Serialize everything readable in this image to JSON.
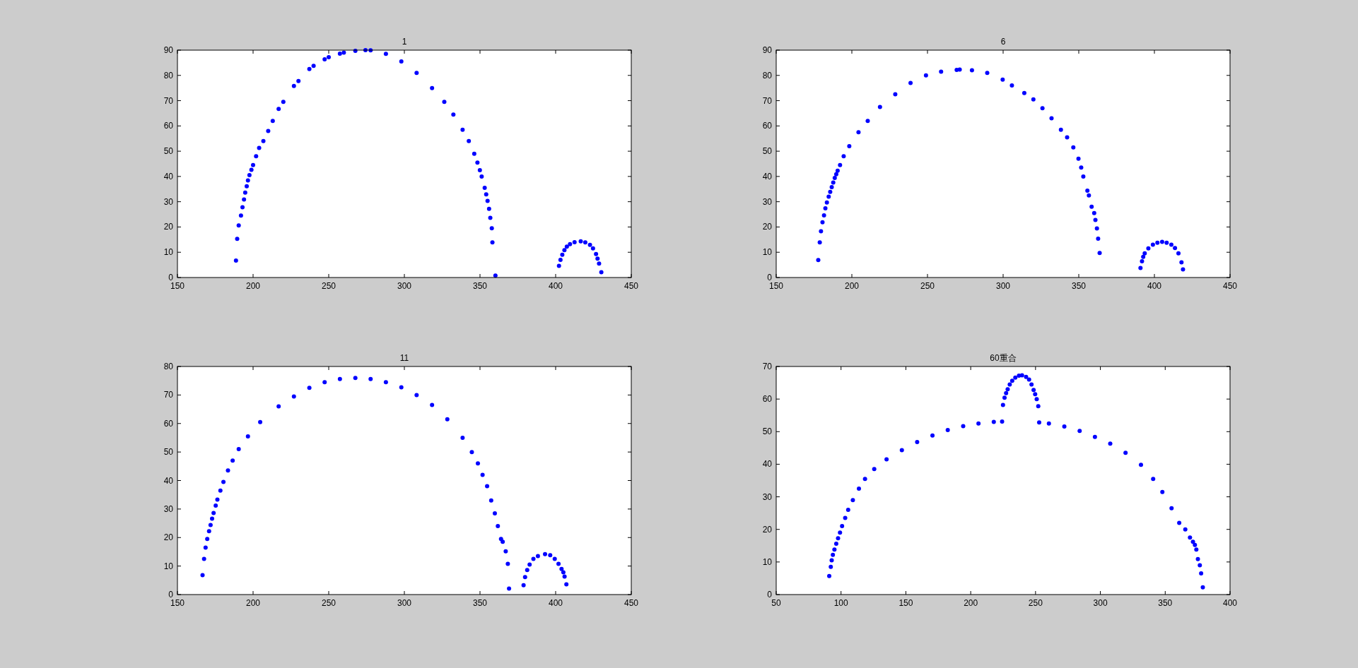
{
  "chart_data": [
    {
      "type": "scatter",
      "title": "1",
      "marker": "circle",
      "grid": false,
      "xlim": [
        150,
        450
      ],
      "xticks": [
        150,
        200,
        250,
        300,
        350,
        400,
        450
      ],
      "ylim": [
        0,
        90
      ],
      "yticks": [
        0,
        10,
        20,
        30,
        40,
        50,
        60,
        70,
        80,
        90
      ],
      "series": [
        {
          "color": "#0000ff",
          "x": [
            188.7,
            189.5,
            190.5,
            192,
            193,
            194,
            194.8,
            195.8,
            196.6,
            197.6,
            198.9,
            200,
            202,
            204,
            206.8,
            210,
            213,
            216.9,
            220,
            227,
            230,
            237.2,
            240,
            247.3,
            250,
            257.4,
            260,
            267.6,
            274.3,
            277.7,
            287.8,
            298,
            308.1,
            318.3,
            326.4,
            332.4,
            338.5,
            342.6,
            346.2,
            348.3,
            349.9,
            351.1,
            353.1,
            354.1,
            355,
            356,
            356.8,
            357.8,
            358.2,
            360.2,
            402.2,
            403.2,
            404.4,
            405.8,
            407.4,
            409.5,
            412.5,
            416.6,
            419.6,
            422.7,
            424.7,
            426.7,
            427.7,
            428.7,
            430.2
          ],
          "values": [
            6.7,
            15.3,
            20.6,
            24.5,
            27.8,
            30.9,
            33.6,
            36.1,
            38.4,
            40.5,
            42.6,
            44.5,
            48,
            51.3,
            54,
            58,
            62,
            66.7,
            69.5,
            75.8,
            77.8,
            82.5,
            83.8,
            86.4,
            87.2,
            88.6,
            89,
            89.7,
            90,
            89.9,
            88.5,
            85.5,
            81,
            75,
            69.5,
            64.5,
            58.5,
            54,
            49,
            45.5,
            42.5,
            40,
            35.5,
            32.9,
            30.3,
            27.2,
            23.6,
            19.5,
            13.9,
            0.8,
            4.6,
            7,
            9,
            10.8,
            12.2,
            13.2,
            14,
            14.3,
            13.9,
            12.9,
            11.5,
            9.3,
            7.5,
            5.5,
            2.1
          ]
        }
      ]
    },
    {
      "type": "scatter",
      "title": "6",
      "marker": "circle",
      "grid": false,
      "xlim": [
        150,
        450
      ],
      "xticks": [
        150,
        200,
        250,
        300,
        350,
        400,
        450
      ],
      "ylim": [
        0,
        90
      ],
      "yticks": [
        0,
        10,
        20,
        30,
        40,
        50,
        60,
        70,
        80,
        90
      ],
      "series": [
        {
          "color": "#0000ff",
          "x": [
            177.8,
            178.8,
            179.6,
            180.6,
            181.6,
            182.5,
            183.5,
            184.7,
            185.7,
            186.7,
            187.7,
            188.7,
            189.7,
            190.6,
            192.2,
            194.6,
            198.3,
            204.4,
            210.5,
            218.6,
            228.7,
            238.8,
            249,
            259,
            269.3,
            271.3,
            279.4,
            289.5,
            299.7,
            305.8,
            314,
            320,
            326,
            332,
            338.2,
            342.3,
            346.4,
            349.8,
            351.6,
            353,
            355.7,
            356.7,
            358.5,
            360.2,
            361,
            362,
            362.8,
            363.8,
            390.8,
            391.8,
            392.6,
            393.6,
            396,
            399,
            402,
            405.1,
            408.1,
            411.2,
            413.6,
            415.9,
            417.9,
            418.9
          ],
          "values": [
            6.9,
            13.9,
            18.3,
            21.9,
            24.6,
            27.4,
            29.7,
            32,
            33.9,
            35.8,
            37.6,
            39.4,
            40.9,
            42.3,
            44.5,
            48,
            52,
            57.5,
            62,
            67.5,
            72.5,
            77,
            80,
            81.5,
            82.2,
            82.3,
            82,
            81,
            78.3,
            76,
            73,
            70.5,
            67,
            63,
            58.5,
            55.5,
            51.5,
            47,
            43.5,
            40,
            34.4,
            32.5,
            28,
            25.5,
            22.8,
            19.4,
            15.4,
            9.7,
            3.8,
            6.4,
            8.2,
            9.6,
            11.5,
            13,
            13.8,
            14.1,
            13.8,
            13,
            11.7,
            9.6,
            6,
            3.2
          ]
        }
      ]
    },
    {
      "type": "scatter",
      "title": "11",
      "marker": "circle",
      "grid": false,
      "xlim": [
        150,
        450
      ],
      "xticks": [
        150,
        200,
        250,
        300,
        350,
        400,
        450
      ],
      "ylim": [
        0,
        80
      ],
      "yticks": [
        0,
        10,
        20,
        30,
        40,
        50,
        60,
        70,
        80
      ],
      "series": [
        {
          "color": "#0000ff",
          "x": [
            166.6,
            167.6,
            168.6,
            169.7,
            170.9,
            171.9,
            172.9,
            173.9,
            175.3,
            176.4,
            178.4,
            180.4,
            183.4,
            186.5,
            190.5,
            196.6,
            204.7,
            216.9,
            227,
            237.2,
            247.3,
            257.4,
            267.6,
            277.7,
            287.8,
            298,
            308.1,
            318.3,
            328.4,
            338.5,
            344.6,
            348.6,
            351.7,
            354.7,
            357.4,
            359.8,
            361.8,
            363.9,
            365,
            367,
            368.4,
            369.2,
            378.8,
            379.8,
            381.2,
            382.8,
            385.3,
            388.3,
            393,
            396.4,
            399.4,
            401.9,
            403.9,
            405.1,
            405.9,
            407.1
          ],
          "values": [
            6.8,
            12.5,
            16.5,
            19.5,
            22.2,
            24.4,
            26.6,
            28.6,
            31.2,
            33.3,
            36.5,
            39.5,
            43.5,
            47,
            51,
            55.5,
            60.5,
            66,
            69.5,
            72.5,
            74.5,
            75.6,
            76,
            75.6,
            74.5,
            72.7,
            70,
            66.5,
            61.5,
            55,
            50,
            46,
            42,
            38,
            33,
            28.5,
            24,
            19.5,
            18.5,
            15.2,
            10.8,
            2.1,
            3.3,
            6.1,
            8.6,
            10.5,
            12.5,
            13.5,
            14.2,
            13.8,
            12.5,
            10.8,
            9,
            7.8,
            6.3,
            3.6
          ]
        }
      ]
    },
    {
      "type": "scatter",
      "title": "60重合",
      "marker": "circle",
      "grid": false,
      "xlim": [
        50,
        400
      ],
      "xticks": [
        50,
        100,
        150,
        200,
        250,
        300,
        350,
        400
      ],
      "ylim": [
        0,
        70
      ],
      "yticks": [
        0,
        10,
        20,
        30,
        40,
        50,
        60,
        70
      ],
      "series": [
        {
          "color": "#0000ff",
          "x": [
            90.9,
            92.1,
            92.8,
            93.7,
            94.9,
            96.3,
            97.7,
            99.2,
            100.8,
            103.2,
            105.5,
            109.1,
            113.8,
            118.5,
            125.6,
            135.1,
            146.9,
            158.7,
            170.5,
            182.3,
            194.2,
            206,
            217.8,
            224.2,
            224.9,
            226.1,
            227.3,
            228.5,
            230.1,
            232,
            234.4,
            237.2,
            239.6,
            242.7,
            245,
            246.9,
            248.5,
            249.7,
            250.9,
            252.1,
            252.8,
            260.3,
            272.2,
            284,
            295.8,
            307.6,
            319.4,
            331.3,
            340.7,
            347.8,
            354.9,
            360.8,
            365.5,
            369.1,
            371.4,
            372.9,
            374,
            375.2,
            376.7,
            377.7,
            379
          ],
          "values": [
            5.7,
            8.5,
            10.5,
            12.2,
            13.8,
            15.6,
            17.3,
            19,
            21,
            23.5,
            26,
            29,
            32.5,
            35.5,
            38.5,
            41.5,
            44.3,
            46.8,
            48.8,
            50.5,
            51.7,
            52.5,
            53,
            53.1,
            58.2,
            60.4,
            61.8,
            63,
            64.5,
            65.6,
            66.6,
            67.2,
            67.3,
            66.8,
            66,
            64.5,
            62.8,
            61.5,
            60,
            57.8,
            52.8,
            52.5,
            51.6,
            50.2,
            48.4,
            46.3,
            43.5,
            39.8,
            35.5,
            31.5,
            26.5,
            22,
            20,
            17.5,
            16.2,
            15.2,
            13.8,
            10.9,
            9,
            6.5,
            2.2
          ]
        }
      ]
    }
  ]
}
